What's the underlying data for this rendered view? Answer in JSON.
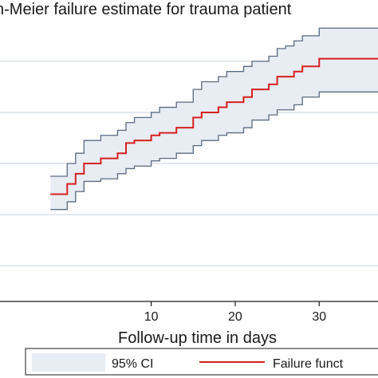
{
  "chart_data": {
    "type": "line",
    "title": "n-Meier failure estimate for trauma patient",
    "xlabel": "Follow-up  time in days",
    "ylabel": "",
    "x_ticks": [
      10,
      20,
      30
    ],
    "grid": true,
    "legend_position": "bottom",
    "legend": [
      {
        "label": "95% CI",
        "kind": "band",
        "color": "#e8ecf3",
        "border": "#5a6b80"
      },
      {
        "label": "Failure funct",
        "kind": "line",
        "color": "#d62020"
      }
    ],
    "series": [
      {
        "name": "Failure funct",
        "kind": "step",
        "x": [
          -2,
          0,
          1,
          2,
          4,
          6,
          7,
          8,
          10,
          11,
          13,
          15,
          16,
          18,
          19,
          21,
          22,
          24,
          25,
          26,
          27,
          28,
          30,
          37
        ],
        "y": [
          0.24,
          0.26,
          0.28,
          0.3,
          0.31,
          0.32,
          0.34,
          0.345,
          0.355,
          0.36,
          0.37,
          0.39,
          0.4,
          0.41,
          0.42,
          0.43,
          0.445,
          0.455,
          0.47,
          0.47,
          0.48,
          0.49,
          0.505,
          0.505
        ]
      },
      {
        "name": "95% CI upper",
        "kind": "step",
        "x": [
          -2,
          0,
          1,
          2,
          4,
          6,
          7,
          8,
          10,
          11,
          13,
          15,
          16,
          18,
          19,
          21,
          22,
          24,
          25,
          26,
          27,
          28,
          30,
          37
        ],
        "y": [
          0.275,
          0.3,
          0.32,
          0.345,
          0.355,
          0.365,
          0.38,
          0.39,
          0.4,
          0.41,
          0.42,
          0.445,
          0.46,
          0.47,
          0.48,
          0.49,
          0.5,
          0.51,
          0.525,
          0.53,
          0.54,
          0.55,
          0.565,
          0.565
        ]
      },
      {
        "name": "95% CI lower",
        "kind": "step",
        "x": [
          -2,
          0,
          1,
          2,
          4,
          6,
          7,
          8,
          10,
          11,
          13,
          15,
          16,
          18,
          19,
          21,
          22,
          24,
          25,
          26,
          27,
          28,
          30,
          37
        ],
        "y": [
          0.21,
          0.225,
          0.245,
          0.265,
          0.27,
          0.28,
          0.29,
          0.295,
          0.305,
          0.31,
          0.32,
          0.335,
          0.345,
          0.355,
          0.36,
          0.37,
          0.385,
          0.395,
          0.405,
          0.405,
          0.415,
          0.43,
          0.44,
          0.44
        ]
      }
    ],
    "xlim": [
      -8,
      37
    ],
    "ylim": [
      0.03,
      0.62
    ],
    "gridlines_y": [
      0.1,
      0.2,
      0.3,
      0.4,
      0.5
    ],
    "colors": {
      "ci_fill": "#e8ecf3",
      "ci_border": "#5a6b80",
      "line": "#d62020",
      "grid": "#c8d2df",
      "axis": "#1a1a1a"
    }
  }
}
